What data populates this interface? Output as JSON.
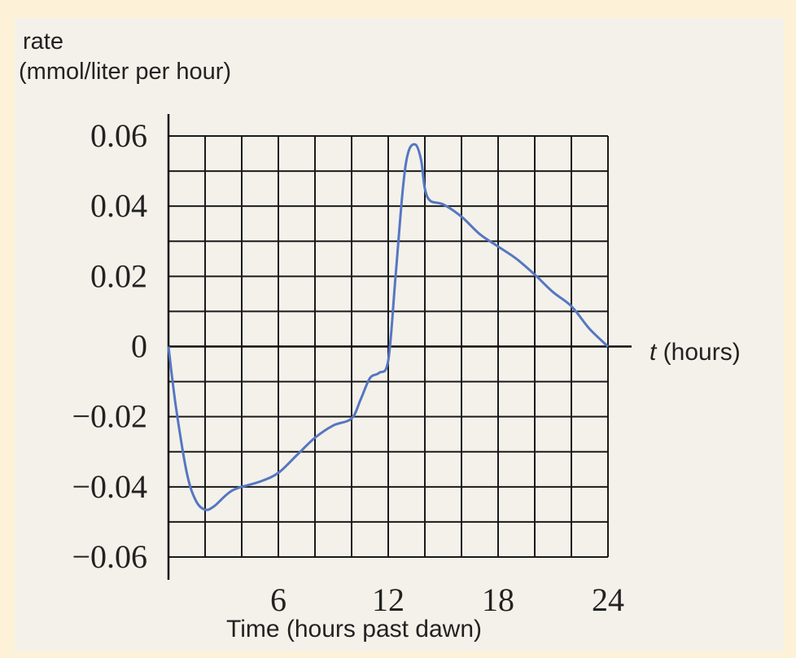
{
  "chart_data": {
    "type": "line",
    "ylabel_line1": "rate",
    "ylabel_line2": "(mmol/liter per hour)",
    "xlabel": "Time (hours past dawn)",
    "t_axis_var": "t",
    "t_axis_label": " (hours)",
    "xlim": [
      0,
      24
    ],
    "ylim": [
      -0.06,
      0.06
    ],
    "grid": true,
    "x_tick_labels": [
      {
        "value": 6,
        "label": "6"
      },
      {
        "value": 12,
        "label": "12"
      },
      {
        "value": 18,
        "label": "18"
      },
      {
        "value": 24,
        "label": "24"
      }
    ],
    "y_tick_labels": [
      {
        "value": 0.06,
        "label": "0.06"
      },
      {
        "value": 0.04,
        "label": "0.04"
      },
      {
        "value": 0.02,
        "label": "0.02"
      },
      {
        "value": 0,
        "label": "0"
      },
      {
        "value": -0.02,
        "label": "−0.02"
      },
      {
        "value": -0.04,
        "label": "−0.04"
      },
      {
        "value": -0.06,
        "label": "−0.06"
      }
    ],
    "series": [
      {
        "color": "#5577c2",
        "points": [
          [
            0,
            0
          ],
          [
            0.4,
            -0.017
          ],
          [
            1,
            -0.036
          ],
          [
            1.5,
            -0.044
          ],
          [
            2,
            -0.0465
          ],
          [
            2.5,
            -0.0455
          ],
          [
            3.5,
            -0.041
          ],
          [
            5,
            -0.0385
          ],
          [
            6,
            -0.036
          ],
          [
            7,
            -0.031
          ],
          [
            8,
            -0.026
          ],
          [
            9,
            -0.0225
          ],
          [
            10,
            -0.0205
          ],
          [
            10.5,
            -0.015
          ],
          [
            11,
            -0.009
          ],
          [
            11.5,
            -0.0075
          ],
          [
            12,
            -0.004
          ],
          [
            12.4,
            0.02
          ],
          [
            12.8,
            0.045
          ],
          [
            13.1,
            0.0555
          ],
          [
            13.5,
            0.0575
          ],
          [
            13.8,
            0.053
          ],
          [
            14,
            0.045
          ],
          [
            14.3,
            0.0415
          ],
          [
            15,
            0.0405
          ],
          [
            16,
            0.037
          ],
          [
            17,
            0.032
          ],
          [
            18,
            0.0285
          ],
          [
            19,
            0.025
          ],
          [
            20,
            0.0205
          ],
          [
            21,
            0.0155
          ],
          [
            22,
            0.0115
          ],
          [
            23,
            0.005
          ],
          [
            24,
            0
          ]
        ]
      }
    ]
  }
}
